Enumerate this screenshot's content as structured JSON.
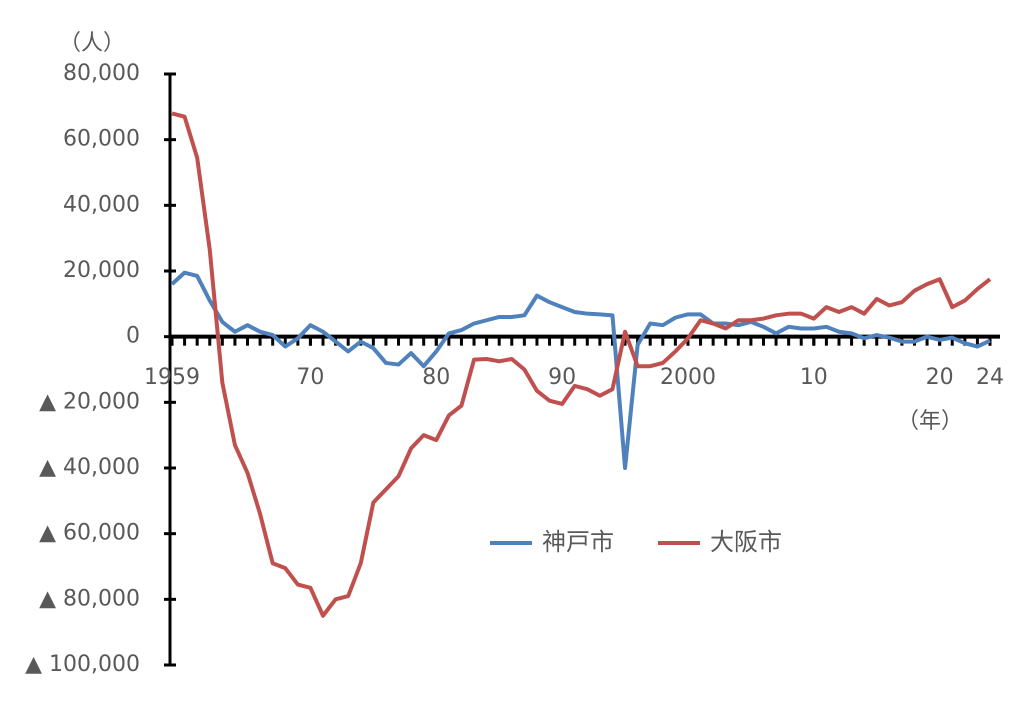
{
  "chart_data": {
    "type": "line",
    "y_unit": "（人）",
    "x_unit": "（年）",
    "x": [
      1959,
      1960,
      1961,
      1962,
      1963,
      1964,
      1965,
      1966,
      1967,
      1968,
      1969,
      1970,
      1971,
      1972,
      1973,
      1974,
      1975,
      1976,
      1977,
      1978,
      1979,
      1980,
      1981,
      1982,
      1983,
      1984,
      1985,
      1986,
      1987,
      1988,
      1989,
      1990,
      1991,
      1992,
      1993,
      1994,
      1995,
      1996,
      1997,
      1998,
      1999,
      2000,
      2001,
      2002,
      2003,
      2004,
      2005,
      2006,
      2007,
      2008,
      2009,
      2010,
      2011,
      2012,
      2013,
      2014,
      2015,
      2016,
      2017,
      2018,
      2019,
      2020,
      2021,
      2022,
      2023,
      2024
    ],
    "series": [
      {
        "name": "神戸市",
        "color": "#4f81bd",
        "values": [
          16000,
          19500,
          18500,
          11000,
          4500,
          1500,
          3500,
          1500,
          500,
          -3000,
          -500,
          3500,
          1500,
          -1500,
          -4500,
          -1500,
          -3500,
          -8000,
          -8500,
          -5000,
          -9000,
          -4500,
          1000,
          2000,
          4000,
          5000,
          6000,
          6000,
          6500,
          12500,
          10500,
          9000,
          7500,
          7000,
          6800,
          6500,
          -40000,
          -2500,
          4000,
          3500,
          5800,
          6800,
          6800,
          4000,
          4000,
          3500,
          4500,
          3000,
          1000,
          3000,
          2500,
          2500,
          3000,
          1500,
          1000,
          -500,
          500,
          -300,
          -1500,
          -1500,
          0,
          -1000,
          -300,
          -2000,
          -3000,
          -1200
        ]
      },
      {
        "name": "大阪市",
        "color": "#c0504d",
        "values": [
          68000,
          67000,
          54500,
          26500,
          -14000,
          -33000,
          -41500,
          -54000,
          -69000,
          -70500,
          -75500,
          -76500,
          -85000,
          -80000,
          -79000,
          -69000,
          -50500,
          -46500,
          -42500,
          -34000,
          -30000,
          -31500,
          -24000,
          -21000,
          -7000,
          -6800,
          -7500,
          -6800,
          -10000,
          -16500,
          -19500,
          -20500,
          -15000,
          -16000,
          -18000,
          -16000,
          1500,
          -9000,
          -9000,
          -8000,
          -4500,
          -500,
          5000,
          4000,
          2500,
          5000,
          5000,
          5500,
          6500,
          7000,
          7000,
          5500,
          9000,
          7500,
          9000,
          7000,
          11500,
          9500,
          10500,
          14000,
          16000,
          17500,
          9000,
          11000,
          14500,
          17500
        ]
      }
    ],
    "xlim": [
      1959,
      2024
    ],
    "xticks": [
      1959,
      {
        "value": 1970,
        "label": "70"
      },
      {
        "value": 1980,
        "label": "80"
      },
      {
        "value": 1990,
        "label": "90"
      },
      2000,
      {
        "value": 2010,
        "label": "10"
      },
      {
        "value": 2020,
        "label": "20"
      },
      {
        "value": 2024,
        "label": "24"
      }
    ],
    "ylim": [
      -100000,
      80000
    ],
    "yticks": [
      {
        "value": -100000,
        "label": "▲ 100,000"
      },
      {
        "value": -80000,
        "label": "▲ 80,000"
      },
      {
        "value": -60000,
        "label": "▲ 60,000"
      },
      {
        "value": -40000,
        "label": "▲ 40,000"
      },
      {
        "value": -20000,
        "label": "▲ 20,000"
      },
      0,
      {
        "value": 20000,
        "label": "20,000"
      },
      {
        "value": 40000,
        "label": "40,000"
      },
      {
        "value": 60000,
        "label": "60,000"
      },
      {
        "value": 80000,
        "label": "80,000"
      }
    ]
  }
}
